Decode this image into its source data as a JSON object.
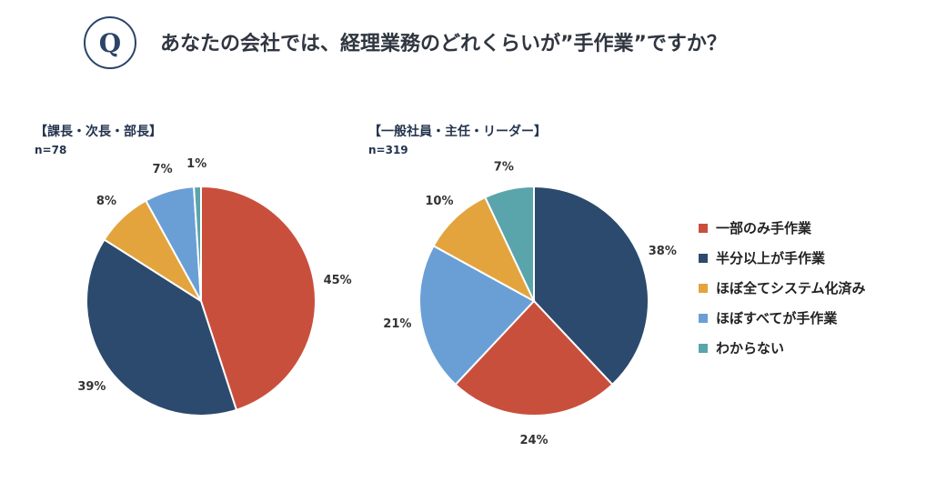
{
  "header": {
    "badge": "Q",
    "question": "あなたの会社では、経理業務のどれくらいが”手作業”ですか？"
  },
  "groups": [
    {
      "title": "【課長・次長・部長】",
      "n": "n=78"
    },
    {
      "title": "【一般社員・主任・リーダー】",
      "n": "n=319"
    }
  ],
  "colors": {
    "一部のみ手作業": "#c94f3d",
    "半分以上が手作業": "#2c4a6e",
    "ほぼ全てシステム化済み": "#e3a43d",
    "ほぼすべてが手作業": "#6a9fd6",
    "わからない": "#5aa4ac"
  },
  "chart_data": [
    {
      "type": "pie",
      "title": "【課長・次長・部長】",
      "n": "n=78",
      "categories": [
        "一部のみ手作業",
        "半分以上が手作業",
        "ほぼ全てシステム化済み",
        "ほぼすべてが手作業",
        "わからない"
      ],
      "values": [
        45,
        39,
        8,
        7,
        1
      ],
      "labels": [
        "45%",
        "39%",
        "8%",
        "7%",
        "1%"
      ],
      "legend": "right"
    },
    {
      "type": "pie",
      "title": "【一般社員・主任・リーダー】",
      "n": "n=319",
      "categories": [
        "半分以上が手作業",
        "一部のみ手作業",
        "ほぼすべてが手作業",
        "ほぼ全てシステム化済み",
        "わからない"
      ],
      "values": [
        38,
        24,
        21,
        10,
        7
      ],
      "labels": [
        "38%",
        "24%",
        "21%",
        "10%",
        "7%"
      ],
      "legend": "right"
    }
  ],
  "legend": {
    "items": [
      "一部のみ手作業",
      "半分以上が手作業",
      "ほぼ全てシステム化済み",
      "ほぼすべてが手作業",
      "わからない"
    ]
  }
}
